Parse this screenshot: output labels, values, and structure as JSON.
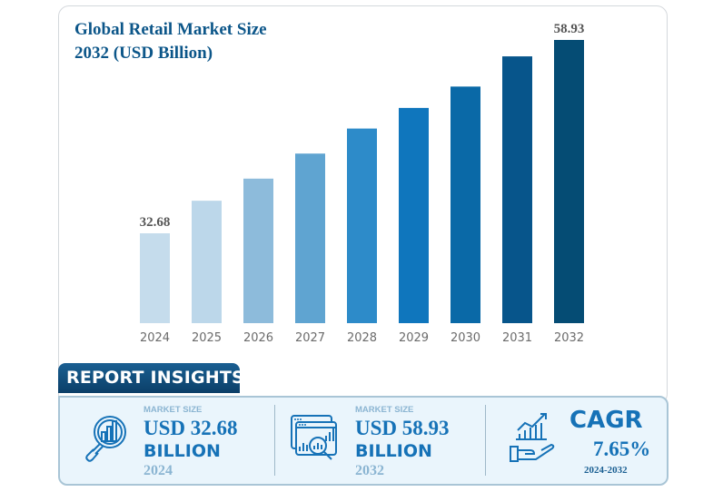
{
  "chart_data": {
    "type": "bar",
    "title": "Global Retail Market Size 2032 (USD Billion)",
    "title_lines": [
      "Global Retail Market Size",
      "2032 (USD Billion)"
    ],
    "xlabel": "",
    "ylabel": "",
    "categories": [
      "2024",
      "2025",
      "2026",
      "2027",
      "2028",
      "2029",
      "2030",
      "2031",
      "2032"
    ],
    "values": [
      32.68,
      37.1,
      40.1,
      43.5,
      46.9,
      49.7,
      52.6,
      56.7,
      58.93
    ],
    "data_labels": {
      "0": "32.68",
      "8": "58.93"
    },
    "colors": [
      "#c5dcec",
      "#bcd7ea",
      "#8dbbdb",
      "#5fa4d1",
      "#2d8bc9",
      "#0f76bd",
      "#0a69a7",
      "#07558b",
      "#054c74"
    ],
    "ylim": [
      0,
      60
    ],
    "grid": false,
    "legend": "none"
  },
  "insights": {
    "tab_label": "REPORT INSIGHTS",
    "cards": [
      {
        "icon": "magnifier-chart-icon",
        "label": "MARKET SIZE",
        "value": "USD 32.68",
        "unit": "BILLION",
        "year": "2024"
      },
      {
        "icon": "analytics-dashboard-icon",
        "label": "MARKET SIZE",
        "value": "USD 58.93",
        "unit": "BILLION",
        "year": "2032"
      }
    ],
    "cagr": {
      "icon": "hand-growth-chart-icon",
      "label": "CAGR",
      "value": "7.65%",
      "range": "2024-2032"
    }
  },
  "colors": {
    "accent": "#1672b7",
    "title": "#0c5689",
    "tab": "#0b3f68",
    "panel_bg": "#eaf5fc"
  }
}
